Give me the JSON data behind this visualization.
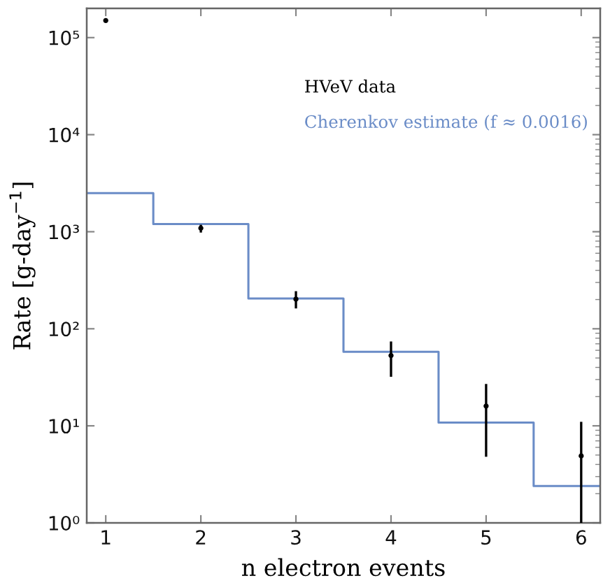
{
  "chart_data": {
    "type": "scatter",
    "xlabel": "n electron events",
    "ylabel": "Rate [g-day$^{−1}$]",
    "xlim": [
      0.8,
      6.2
    ],
    "xticks": [
      1,
      2,
      3,
      4,
      5,
      6
    ],
    "ylim": [
      1,
      200000
    ],
    "yticks": [
      {
        "value": 1,
        "label": "10⁰"
      },
      {
        "value": 10,
        "label": "10¹"
      },
      {
        "value": 100,
        "label": "10²"
      },
      {
        "value": 1000,
        "label": "10³"
      },
      {
        "value": 10000,
        "label": "10⁴"
      },
      {
        "value": 100000,
        "label": "10⁵"
      }
    ],
    "log": "y",
    "legend": "top right",
    "series": [
      {
        "name": "HVeV data",
        "color": "#000000",
        "marker": "circle",
        "x": [
          1,
          2,
          3,
          4,
          5,
          6
        ],
        "values": [
          150000,
          1090,
          202,
          53,
          16,
          4.9
        ],
        "errors": [
          null,
          [
            980,
            1180
          ],
          [
            162,
            244
          ],
          [
            32,
            74
          ],
          [
            4.8,
            27
          ],
          [
            1,
            11
          ]
        ]
      },
      {
        "name": "Cherenkov estimate (f ≈ 0.0016)",
        "type": "step",
        "color": "#6a8cc7",
        "line_style": "solid",
        "x": [
          0.8,
          1.5,
          2.5,
          3.5,
          4.5,
          5.5,
          6.2
        ],
        "values": [
          2500,
          1200,
          205,
          58,
          10.8,
          2.4,
          2.4
        ]
      }
    ]
  }
}
